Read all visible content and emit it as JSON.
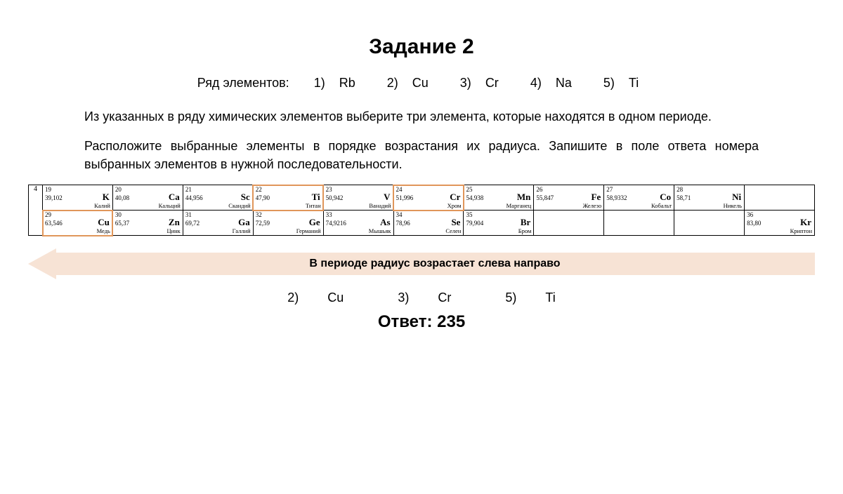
{
  "title": "Задание 2",
  "elements_line_prefix": "Ряд элементов:",
  "elements_list": [
    {
      "n": "1)",
      "sym": "Rb"
    },
    {
      "n": "2)",
      "sym": "Cu"
    },
    {
      "n": "3)",
      "sym": "Cr"
    },
    {
      "n": "4)",
      "sym": "Na"
    },
    {
      "n": "5)",
      "sym": "Ti"
    }
  ],
  "paragraph1": "Из указанных в ряду химических элементов выберите три элемента, которые находятся в одном периоде.",
  "paragraph2": "Расположите выбранные элементы в порядке возрастания их радиуса. Запишите в поле ответа номера выбранных элементов в нужной последовательности.",
  "period_label": "4",
  "ptable": {
    "row1": [
      {
        "num": "19",
        "sym": "K",
        "mass": "39,102",
        "name": "Калий",
        "hl": false
      },
      {
        "num": "20",
        "sym": "Ca",
        "mass": "40,08",
        "name": "Кальций",
        "hl": false
      },
      {
        "num": "21",
        "sym": "Sc",
        "mass": "44,956",
        "name": "Скандий",
        "hl": false
      },
      {
        "num": "22",
        "sym": "Ti",
        "mass": "47,90",
        "name": "Титан",
        "hl": true
      },
      {
        "num": "23",
        "sym": "V",
        "mass": "50,942",
        "name": "Ванадий",
        "hl": false
      },
      {
        "num": "24",
        "sym": "Cr",
        "mass": "51,996",
        "name": "Хром",
        "hl": true
      },
      {
        "num": "25",
        "sym": "Mn",
        "mass": "54,938",
        "name": "Марганец",
        "hl": false
      },
      {
        "num": "26",
        "sym": "Fe",
        "mass": "55,847",
        "name": "Железо",
        "hl": false
      },
      {
        "num": "27",
        "sym": "Co",
        "mass": "58,9332",
        "name": "Кобальт",
        "hl": false
      },
      {
        "num": "28",
        "sym": "Ni",
        "mass": "58,71",
        "name": "Никель",
        "hl": false
      },
      {
        "blank": true
      }
    ],
    "row2": [
      {
        "num": "29",
        "sym": "Cu",
        "mass": "63,546",
        "name": "Медь",
        "hl": true
      },
      {
        "num": "30",
        "sym": "Zn",
        "mass": "65,37",
        "name": "Цинк",
        "hl": false
      },
      {
        "num": "31",
        "sym": "Ga",
        "mass": "69,72",
        "name": "Галлий",
        "hl": false
      },
      {
        "num": "32",
        "sym": "Ge",
        "mass": "72,59",
        "name": "Германий",
        "hl": false
      },
      {
        "num": "33",
        "sym": "As",
        "mass": "74,9216",
        "name": "Мышьяк",
        "hl": false
      },
      {
        "num": "34",
        "sym": "Se",
        "mass": "78,96",
        "name": "Селен",
        "hl": false
      },
      {
        "num": "35",
        "sym": "Br",
        "mass": "79,904",
        "name": "Бром",
        "hl": false
      },
      {
        "blank": true
      },
      {
        "blank": true
      },
      {
        "blank": true
      },
      {
        "num": "36",
        "sym": "Kr",
        "mass": "83,80",
        "name": "Криптон",
        "hl": false
      }
    ]
  },
  "arrow_text": "В периоде радиус возрастает слева направо",
  "selected": [
    {
      "n": "2)",
      "sym": "Cu"
    },
    {
      "n": "3)",
      "sym": "Cr"
    },
    {
      "n": "5)",
      "sym": "Ti"
    }
  ],
  "answer_label": "Ответ:",
  "answer_value": "235",
  "colors": {
    "highlight_border": "#e0965a",
    "arrow_fill": "#f7e3d5",
    "text": "#000000",
    "background": "#ffffff"
  }
}
